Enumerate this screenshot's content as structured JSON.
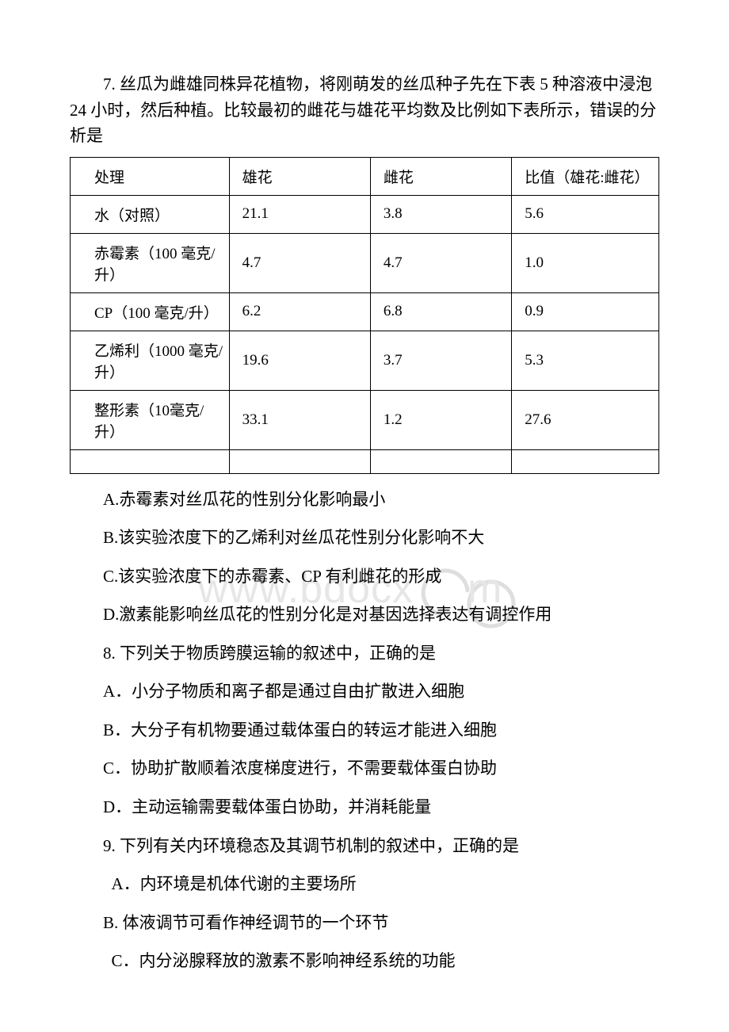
{
  "q7": {
    "stem": "7. 丝瓜为雌雄同株异花植物，将刚萌发的丝瓜种子先在下表 5 种溶液中浸泡 24 小时，然后种植。比较最初的雌花与雄花平均数及比例如下表所示，错误的分析是",
    "table": {
      "columns": [
        "处理",
        "雄花",
        "雌花",
        "比值（雄花:雌花）"
      ],
      "rows": [
        [
          "水（对照）",
          "21.1",
          "3.8",
          "5.6"
        ],
        [
          "赤霉素（100 毫克/升）",
          "4.7",
          "4.7",
          "1.0"
        ],
        [
          "CP（100 毫克/升）",
          "6.2",
          "6.8",
          "0.9"
        ],
        [
          "乙烯利（1000 毫克/升）",
          "19.6",
          "3.7",
          "5.3"
        ],
        [
          "整形素（10毫克/升）",
          "33.1",
          "1.2",
          "27.6"
        ]
      ]
    },
    "options": {
      "A": "A.赤霉素对丝瓜花的性别分化影响最小",
      "B": "B.该实验浓度下的乙烯利对丝瓜花性别分化影响不大",
      "C": "C.该实验浓度下的赤霉素、CP 有利雌花的形成",
      "D": "D.激素能影响丝瓜花的性别分化是对基因选择表达有调控作用"
    }
  },
  "q8": {
    "stem": "8. 下列关于物质跨膜运输的叙述中，正确的是",
    "options": {
      "A": "A．小分子物质和离子都是通过自由扩散进入细胞",
      "B": "B．大分子有机物要通过载体蛋白的转运才能进入细胞",
      "C": "C．协助扩散顺着浓度梯度进行，不需要载体蛋白协助",
      "D": "D．主动运输需要载体蛋白协助，并消耗能量"
    }
  },
  "q9": {
    "stem": "9. 下列有关内环境稳态及其调节机制的叙述中，正确的是",
    "options": {
      "A": "A．内环境是机体代谢的主要场所",
      "B": "B. 体液调节可看作神经调节的一个环节",
      "C": "C．内分泌腺释放的激素不影响神经系统的功能"
    }
  },
  "watermark": {
    "stroke": "#dedede",
    "text_fill": "#e6e6e6"
  }
}
